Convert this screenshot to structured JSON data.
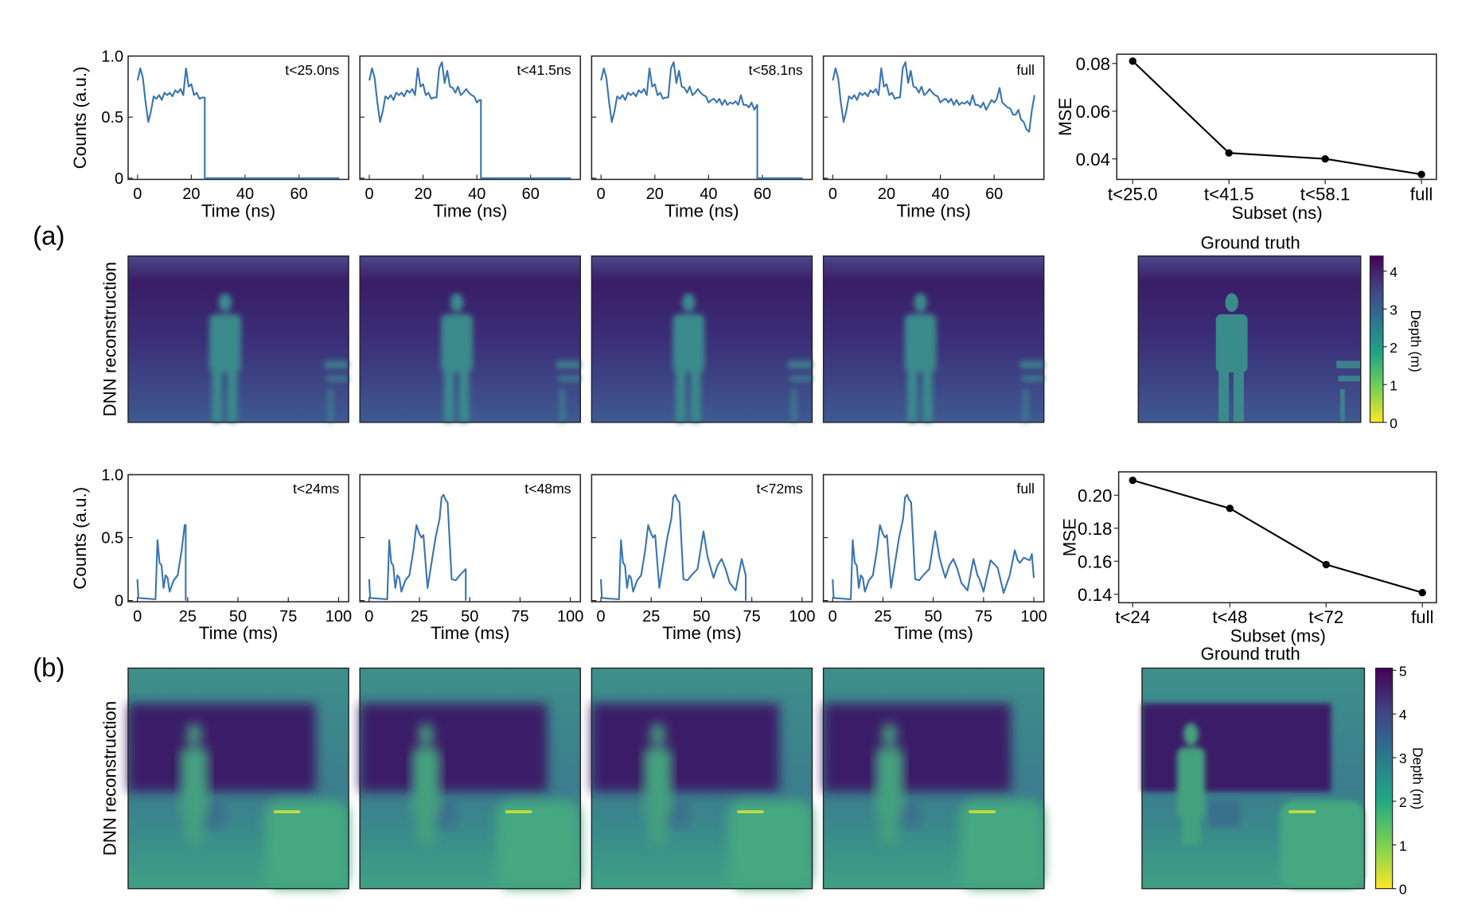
{
  "panel_labels": {
    "a": "(a)",
    "b": "(b)"
  },
  "common": {
    "counts_label": "Counts (a.u.)",
    "mse_label": "MSE",
    "dnn_label": "DNN reconstruction",
    "ground_truth": "Ground truth",
    "depth_label": "Depth (m)"
  },
  "colors": {
    "line": "#3a75b0",
    "mse": "#000000"
  },
  "chart_data": [
    {
      "id": "a-histograms",
      "type": "line",
      "xlabel": "Time (ns)",
      "ylabel": "Counts (a.u.)",
      "xlim": [
        -3.5,
        78.5
      ],
      "ylim": [
        -0.01,
        1.0
      ],
      "xticks": [
        "0",
        "20",
        "40",
        "60"
      ],
      "xtick_values": [
        0,
        20,
        40,
        60
      ],
      "yticks": [
        "0",
        "0.5",
        "1.0"
      ],
      "ytick_values": [
        0,
        0.5,
        1.0
      ],
      "x_end": 75,
      "signal": {
        "x": [
          0,
          1,
          2,
          3,
          4,
          5,
          6,
          7,
          8,
          9,
          10,
          11,
          12,
          13,
          14,
          15,
          16,
          17,
          18,
          19,
          20,
          21,
          22,
          23,
          24,
          25,
          26,
          27,
          28,
          29,
          30,
          31,
          32,
          33,
          34,
          35,
          36,
          37,
          38,
          39,
          40,
          41,
          42,
          43,
          44,
          45,
          46,
          47,
          48,
          49,
          50,
          51,
          52,
          53,
          54,
          55,
          56,
          57,
          58,
          59,
          60,
          61,
          62,
          63,
          64,
          65,
          66,
          67,
          68,
          69,
          70,
          71,
          72,
          73,
          74,
          75
        ],
        "y": [
          0.8,
          0.9,
          0.82,
          0.62,
          0.46,
          0.55,
          0.67,
          0.65,
          0.68,
          0.64,
          0.7,
          0.68,
          0.7,
          0.67,
          0.72,
          0.7,
          0.73,
          0.68,
          0.9,
          0.75,
          0.77,
          0.68,
          0.7,
          0.65,
          0.66,
          0.66,
          0.9,
          0.95,
          0.78,
          0.88,
          0.75,
          0.74,
          0.7,
          0.75,
          0.68,
          0.7,
          0.73,
          0.7,
          0.68,
          0.67,
          0.62,
          0.64,
          0.65,
          0.62,
          0.65,
          0.6,
          0.64,
          0.6,
          0.62,
          0.61,
          0.63,
          0.6,
          0.68,
          0.6,
          0.6,
          0.58,
          0.62,
          0.56,
          0.6,
          0.64,
          0.62,
          0.65,
          0.74,
          0.62,
          0.6,
          0.58,
          0.57,
          0.52,
          0.52,
          0.56,
          0.48,
          0.46,
          0.4,
          0.38,
          0.55,
          0.68
        ]
      },
      "panels": [
        {
          "annotation": "t<25.0ns",
          "cutoff": 25.0
        },
        {
          "annotation": "t<41.5ns",
          "cutoff": 41.5
        },
        {
          "annotation": "t<58.1ns",
          "cutoff": 58.1
        },
        {
          "annotation": "full",
          "cutoff": 75
        }
      ]
    },
    {
      "id": "a-mse",
      "type": "line",
      "xlabel": "Subset (ns)",
      "ylabel": "MSE",
      "categories": [
        "t<25.0",
        "t<41.5",
        "t<58.1",
        "full"
      ],
      "values": [
        0.081,
        0.0425,
        0.04,
        0.0335
      ],
      "ylim": [
        0.0314,
        0.0839
      ],
      "yticks": [
        "0.04",
        "0.06",
        "0.08"
      ],
      "ytick_values": [
        0.04,
        0.06,
        0.08
      ]
    },
    {
      "id": "b-histograms",
      "type": "line",
      "xlabel": "Time (ms)",
      "ylabel": "Counts (a.u.)",
      "xlim": [
        -4.6,
        105
      ],
      "ylim": [
        -0.01,
        1.0
      ],
      "xticks": [
        "0",
        "25",
        "50",
        "75",
        "100"
      ],
      "xtick_values": [
        0,
        25,
        50,
        75,
        100
      ],
      "yticks": [
        "0",
        "0.5",
        "1.0"
      ],
      "ytick_values": [
        0,
        0.5,
        1.0
      ],
      "x_end": 100,
      "signal": {
        "x": [
          0,
          0.5,
          9,
          10,
          11,
          12,
          13,
          14,
          15,
          16,
          18,
          20,
          22,
          23.5,
          25,
          26,
          27,
          29,
          31,
          33,
          35,
          36,
          37,
          38,
          39,
          41,
          43,
          45,
          48,
          51,
          53,
          54,
          56,
          58,
          60,
          62,
          64,
          67,
          70,
          72,
          73,
          75,
          78.5,
          82,
          85,
          88,
          90.5,
          92,
          93,
          95,
          98,
          99,
          100
        ],
        "y": [
          0.17,
          0.02,
          0.01,
          0.48,
          0.3,
          0.28,
          0.1,
          0.2,
          0.18,
          0.07,
          0.16,
          0.2,
          0.4,
          0.6,
          0.53,
          0.5,
          0.52,
          0.1,
          0.3,
          0.5,
          0.65,
          0.82,
          0.84,
          0.8,
          0.78,
          0.17,
          0.16,
          0.2,
          0.25,
          0.55,
          0.35,
          0.29,
          0.18,
          0.28,
          0.33,
          0.25,
          0.14,
          0.08,
          0.33,
          0.2,
          0.17,
          0.07,
          0.32,
          0.26,
          0.06,
          0.2,
          0.4,
          0.32,
          0.3,
          0.34,
          0.32,
          0.37,
          0.18
        ]
      },
      "panels": [
        {
          "annotation": "t<24ms",
          "cutoff": 24
        },
        {
          "annotation": "t<48ms",
          "cutoff": 48
        },
        {
          "annotation": "t<72ms",
          "cutoff": 72
        },
        {
          "annotation": "full",
          "cutoff": 100
        }
      ]
    },
    {
      "id": "b-mse",
      "type": "line",
      "xlabel": "Subset (ms)",
      "ylabel": "MSE",
      "categories": [
        "t<24",
        "t<48",
        "t<72",
        "full"
      ],
      "values": [
        0.209,
        0.192,
        0.158,
        0.141
      ],
      "ylim": [
        0.1349,
        0.2141
      ],
      "yticks": [
        "0.14",
        "0.16",
        "0.18",
        "0.20"
      ],
      "ytick_values": [
        0.14,
        0.16,
        0.18,
        0.2
      ]
    },
    {
      "id": "a-colorbar",
      "type": "heatmap",
      "ylim": [
        0,
        4.4
      ],
      "ticks": [
        "0",
        "1",
        "2",
        "3",
        "4"
      ],
      "tick_values": [
        0,
        1,
        2,
        3,
        4
      ]
    },
    {
      "id": "b-colorbar",
      "type": "heatmap",
      "ylim": [
        0,
        5.05
      ],
      "ticks": [
        "0",
        "1",
        "2",
        "3",
        "4",
        "5"
      ],
      "tick_values": [
        0,
        1,
        2,
        3,
        4,
        5
      ]
    }
  ]
}
